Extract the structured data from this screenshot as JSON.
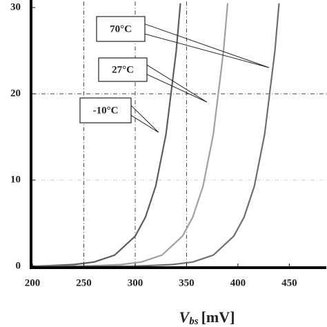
{
  "chart_data": {
    "type": "line",
    "xlabel": {
      "symbol": "V",
      "subscript": "bs",
      "unit": "[mV]"
    },
    "xlim": [
      200,
      486
    ],
    "ylim": [
      0,
      30.7
    ],
    "xticks": [
      200,
      250,
      300,
      350,
      400,
      450
    ],
    "yticks": [
      0,
      10,
      20,
      30
    ],
    "xgrid": [
      250,
      300,
      350
    ],
    "ygrid": [
      10,
      20
    ],
    "series": [
      {
        "name": "-10°C",
        "color": "#5c5c5c",
        "x": [
          200,
          220,
          240,
          260,
          280,
          300,
          310,
          320,
          330,
          340,
          344
        ],
        "values": [
          0,
          0.1,
          0.2,
          0.5,
          1.3,
          3.5,
          5.7,
          9.3,
          15.3,
          25,
          30.5
        ]
      },
      {
        "name": "27°C",
        "color": "#a0a0a0",
        "x": [
          200,
          246,
          266,
          286,
          306,
          326,
          346,
          356,
          366,
          376,
          386,
          390
        ],
        "values": [
          0,
          0.02,
          0.1,
          0.2,
          0.5,
          1.3,
          3.5,
          5.7,
          9.3,
          15.3,
          25,
          30.5
        ]
      },
      {
        "name": "70°C",
        "color": "#6e6e6e",
        "x": [
          200,
          296,
          316,
          336,
          356,
          376,
          396,
          406,
          416,
          426,
          436,
          440
        ],
        "values": [
          0,
          0.02,
          0.1,
          0.2,
          0.5,
          1.3,
          3.5,
          5.7,
          9.3,
          15.3,
          25,
          30.5
        ]
      }
    ]
  }
}
